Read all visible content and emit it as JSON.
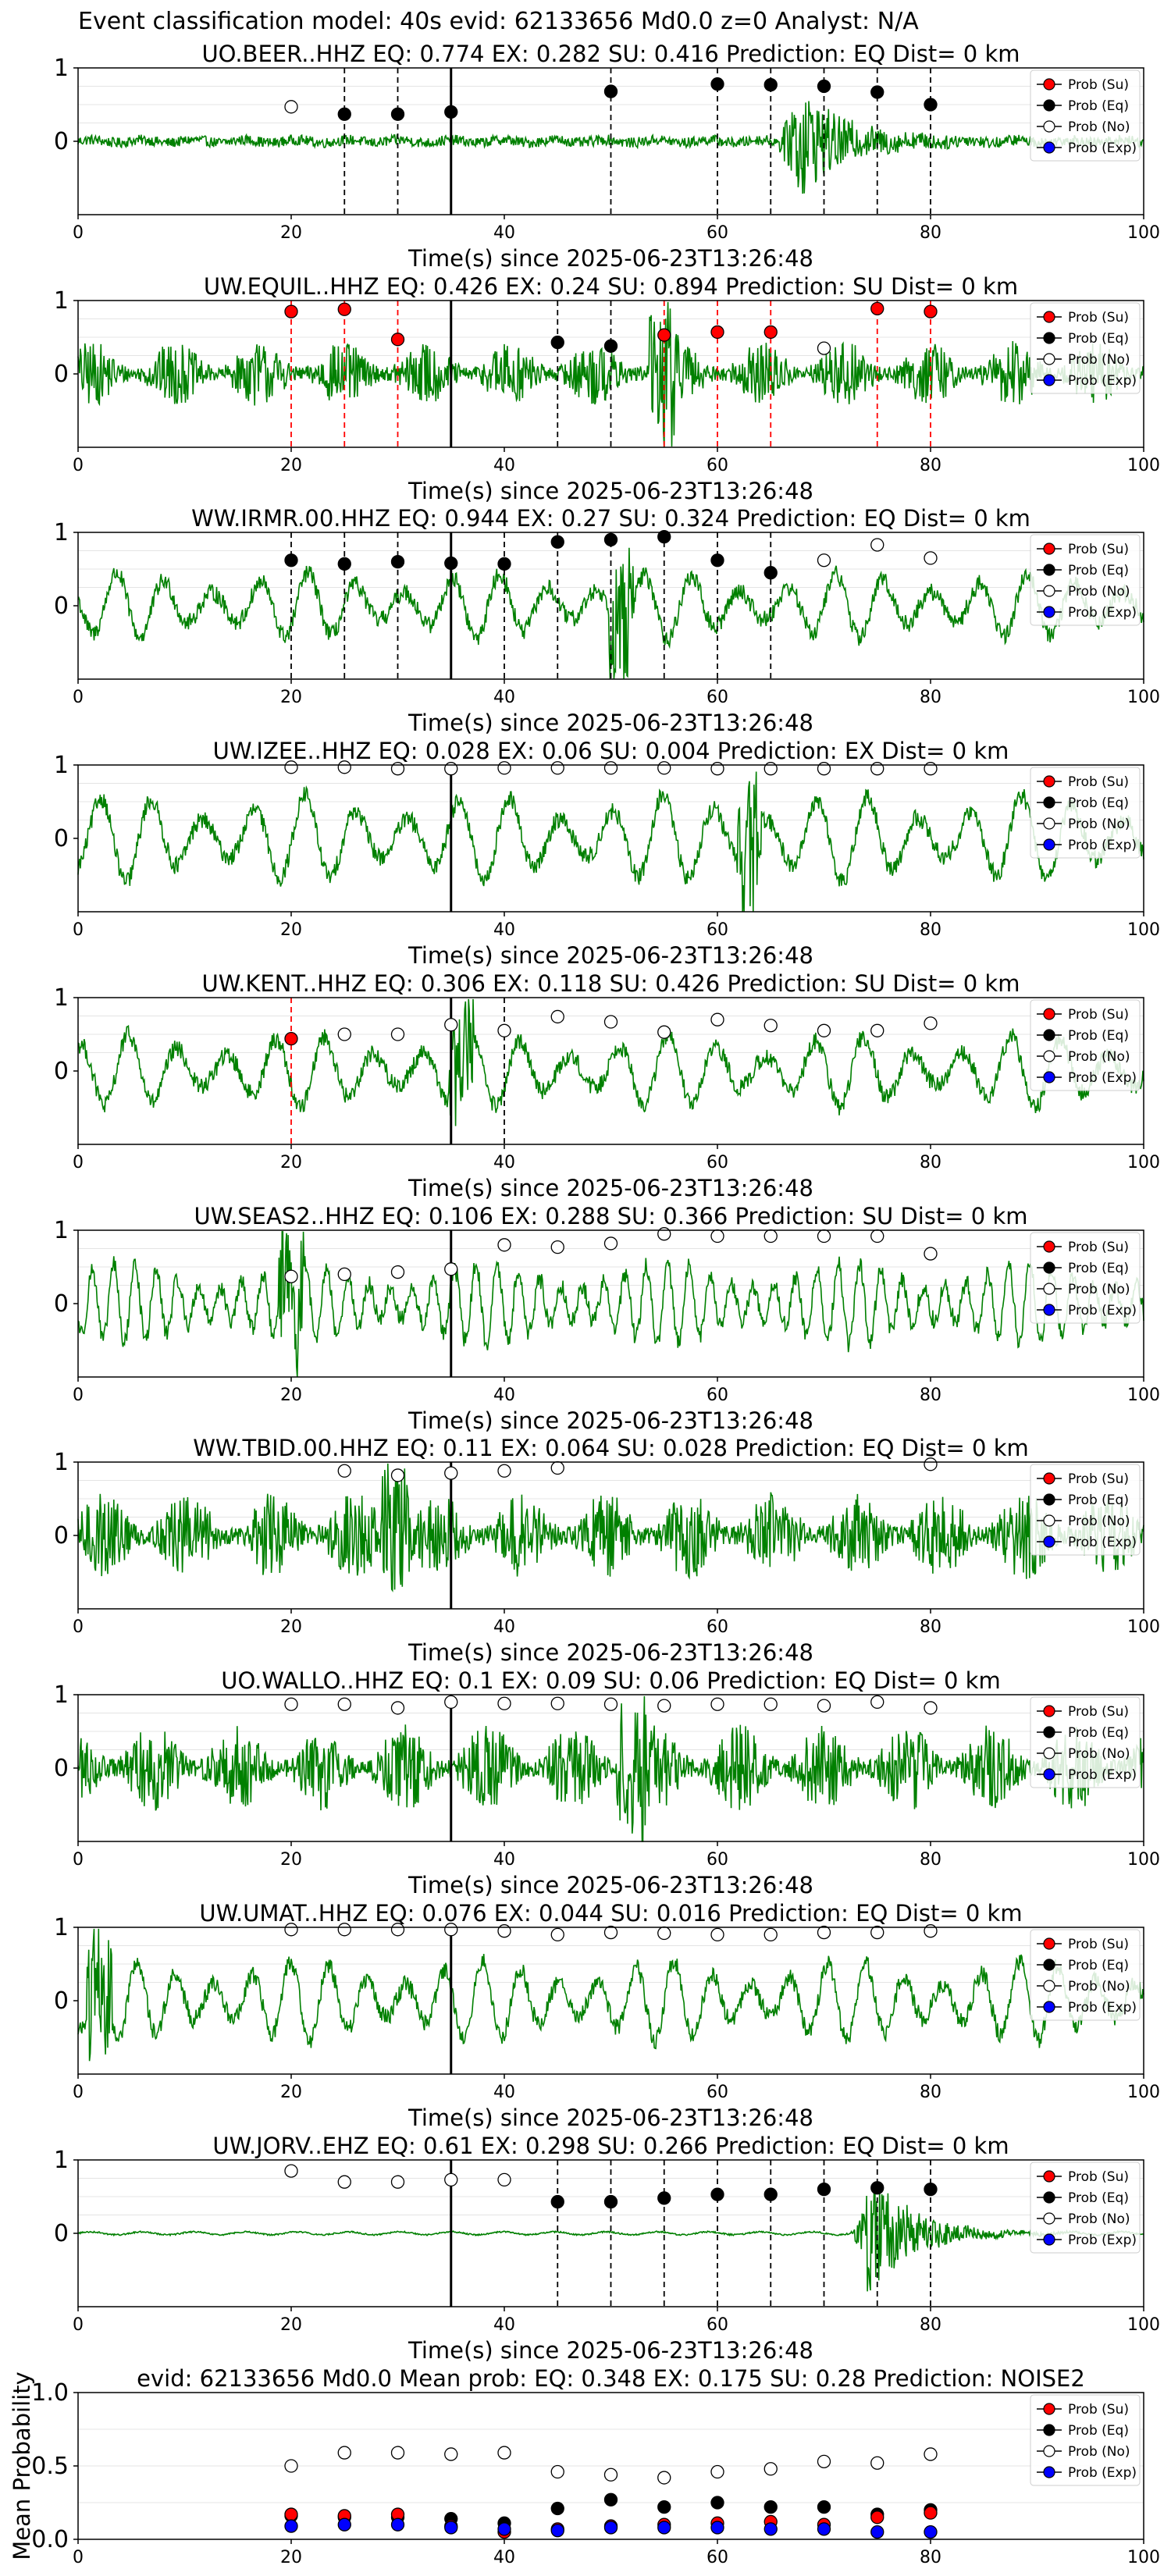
{
  "figure_title": "Event classification model: 40s evid: 62133656 Md0.0 z=0 Analyst: N/A",
  "legend_labels": [
    "Prob (Su)",
    "Prob (Eq)",
    "Prob (No)",
    "Prob (Exp)"
  ],
  "colors": {
    "waveform": "#008000",
    "su": "#ff0000",
    "eq": "#000000",
    "no": "#ffffff",
    "exp": "#0000ff",
    "su_marker_line": "#ff0000",
    "eq_marker_line": "#000000",
    "origin_line": "#000000"
  },
  "chart_data": [
    {
      "type": "line",
      "title": "UO.BEER..HHZ   EQ: 0.774  EX: 0.282  SU: 0.416   Prediction: EQ    Dist= 0 km",
      "xlabel": "Time(s) since 2025-06-23T13:26:48",
      "ylabel": "",
      "xlim": [
        0,
        100
      ],
      "ylim": [
        -1,
        1
      ],
      "xticks": [
        0,
        20,
        40,
        60,
        80,
        100
      ],
      "yticks": [
        0,
        1
      ],
      "origin_time": 35,
      "marker_lines": {
        "color": "eq",
        "times": [
          25,
          30,
          50,
          60,
          65,
          70,
          75,
          80
        ]
      },
      "waveform": {
        "style": "event",
        "event_time": 67,
        "bg_amp": 0.07,
        "spike_amp": 0.9
      },
      "series": [
        {
          "name": "Prob (Eq)",
          "marker": "eq",
          "x": [
            25,
            30,
            35,
            50,
            60,
            65,
            70,
            75,
            80
          ],
          "y": [
            0.37,
            0.37,
            0.4,
            0.68,
            0.78,
            0.77,
            0.75,
            0.67,
            0.5
          ]
        },
        {
          "name": "Prob (No)",
          "marker": "no",
          "x": [
            20
          ],
          "y": [
            0.47
          ]
        }
      ]
    },
    {
      "type": "line",
      "title": "UW.EQUIL..HHZ   EQ: 0.426  EX: 0.24  SU: 0.894   Prediction: SU    Dist= 0 km",
      "xlabel": "Time(s) since 2025-06-23T13:26:48",
      "ylabel": "",
      "xlim": [
        0,
        100
      ],
      "ylim": [
        -1,
        1
      ],
      "xticks": [
        0,
        20,
        40,
        60,
        80,
        100
      ],
      "yticks": [
        0,
        1
      ],
      "origin_time": 35,
      "marker_lines": {
        "color": "su",
        "times": [
          20,
          25,
          30,
          55,
          60,
          65,
          75,
          80
        ]
      },
      "marker_lines_2": {
        "color": "eq",
        "times": [
          45,
          50
        ]
      },
      "waveform": {
        "style": "noisy",
        "bg_amp": 0.45,
        "spike_time": 55,
        "spike_amp": 0.95
      },
      "series": [
        {
          "name": "Prob (Su)",
          "marker": "su",
          "x": [
            20,
            25,
            30,
            55,
            60,
            65,
            75,
            80
          ],
          "y": [
            0.85,
            0.88,
            0.47,
            0.53,
            0.57,
            0.57,
            0.89,
            0.85
          ]
        },
        {
          "name": "Prob (Eq)",
          "marker": "eq",
          "x": [
            45,
            50
          ],
          "y": [
            0.43,
            0.38
          ]
        },
        {
          "name": "Prob (No)",
          "marker": "no",
          "x": [
            70
          ],
          "y": [
            0.35
          ]
        }
      ]
    },
    {
      "type": "line",
      "title": "WW.IRMR.00.HHZ   EQ: 0.944  EX: 0.27  SU: 0.324   Prediction: EQ    Dist= 0 km",
      "xlabel": "Time(s) since 2025-06-23T13:26:48",
      "ylabel": "",
      "xlim": [
        0,
        100
      ],
      "ylim": [
        -1,
        1
      ],
      "xticks": [
        0,
        20,
        40,
        60,
        80,
        100
      ],
      "yticks": [
        0,
        1
      ],
      "origin_time": 35,
      "marker_lines": {
        "color": "eq",
        "times": [
          20,
          25,
          30,
          40,
          45,
          50,
          55,
          60,
          65
        ]
      },
      "waveform": {
        "style": "wavy",
        "bg_amp": 0.45,
        "period": 4.5,
        "spike_time": 51,
        "spike_amp": 0.95
      },
      "series": [
        {
          "name": "Prob (Eq)",
          "marker": "eq",
          "x": [
            20,
            25,
            30,
            35,
            40,
            45,
            50,
            55,
            60,
            65
          ],
          "y": [
            0.62,
            0.57,
            0.6,
            0.58,
            0.57,
            0.87,
            0.9,
            0.94,
            0.62,
            0.45
          ]
        },
        {
          "name": "Prob (No)",
          "marker": "no",
          "x": [
            70,
            75,
            80
          ],
          "y": [
            0.62,
            0.83,
            0.65
          ]
        }
      ]
    },
    {
      "type": "line",
      "title": "UW.IZEE..HHZ   EQ: 0.028  EX: 0.06  SU: 0.004   Prediction: EX    Dist= 0 km",
      "xlabel": "Time(s) since 2025-06-23T13:26:48",
      "ylabel": "",
      "xlim": [
        0,
        100
      ],
      "ylim": [
        -1,
        1
      ],
      "xticks": [
        0,
        20,
        40,
        60,
        80,
        100
      ],
      "yticks": [
        0,
        1
      ],
      "origin_time": 35,
      "waveform": {
        "style": "wavy",
        "bg_amp": 0.6,
        "period": 4.8,
        "spike_time": 63,
        "spike_amp": 0.95
      },
      "series": [
        {
          "name": "Prob (No)",
          "marker": "no",
          "x": [
            20,
            25,
            30,
            35,
            40,
            45,
            50,
            55,
            60,
            65,
            70,
            75,
            80
          ],
          "y": [
            0.97,
            0.97,
            0.95,
            0.95,
            0.96,
            0.96,
            0.96,
            0.96,
            0.95,
            0.95,
            0.95,
            0.95,
            0.95
          ]
        }
      ]
    },
    {
      "type": "line",
      "title": "UW.KENT..HHZ   EQ: 0.306  EX: 0.118  SU: 0.426   Prediction: SU    Dist= 0 km",
      "xlabel": "Time(s) since 2025-06-23T13:26:48",
      "ylabel": "",
      "xlim": [
        0,
        100
      ],
      "ylim": [
        -1,
        1
      ],
      "xticks": [
        0,
        20,
        40,
        60,
        80,
        100
      ],
      "yticks": [
        0,
        1
      ],
      "origin_time": 35,
      "marker_lines": {
        "color": "su",
        "times": [
          20
        ]
      },
      "marker_lines_2": {
        "color": "eq",
        "times": [
          40
        ]
      },
      "waveform": {
        "style": "wavy",
        "bg_amp": 0.5,
        "period": 4.6,
        "spike_time": 36,
        "spike_amp": 0.95
      },
      "series": [
        {
          "name": "Prob (Su)",
          "marker": "su",
          "x": [
            20
          ],
          "y": [
            0.44
          ]
        },
        {
          "name": "Prob (No)",
          "marker": "no",
          "x": [
            25,
            30,
            35,
            40,
            45,
            50,
            55,
            60,
            65,
            70,
            75,
            80
          ],
          "y": [
            0.5,
            0.5,
            0.63,
            0.55,
            0.74,
            0.67,
            0.53,
            0.7,
            0.62,
            0.55,
            0.55,
            0.65
          ]
        }
      ]
    },
    {
      "type": "line",
      "title": "UW.SEAS2..HHZ   EQ: 0.106  EX: 0.288  SU: 0.366   Prediction: SU    Dist= 0 km",
      "xlabel": "Time(s) since 2025-06-23T13:26:48",
      "ylabel": "",
      "xlim": [
        0,
        100
      ],
      "ylim": [
        -1,
        1
      ],
      "xticks": [
        0,
        20,
        40,
        60,
        80,
        100
      ],
      "yticks": [
        0,
        1
      ],
      "origin_time": 35,
      "waveform": {
        "style": "wavy",
        "bg_amp": 0.55,
        "period": 2.0,
        "spike_time": 20,
        "spike_amp": 0.9
      },
      "series": [
        {
          "name": "Prob (No)",
          "marker": "no",
          "x": [
            20,
            25,
            30,
            35,
            40,
            45,
            50,
            55,
            60,
            65,
            70,
            75,
            80
          ],
          "y": [
            0.37,
            0.4,
            0.43,
            0.47,
            0.8,
            0.77,
            0.82,
            0.95,
            0.92,
            0.92,
            0.92,
            0.92,
            0.68
          ]
        }
      ]
    },
    {
      "type": "line",
      "title": "WW.TBID.00.HHZ   EQ: 0.11  EX: 0.064  SU: 0.028   Prediction: EQ    Dist= 0 km",
      "xlabel": "Time(s) since 2025-06-23T13:26:48",
      "ylabel": "",
      "xlim": [
        0,
        100
      ],
      "ylim": [
        -1,
        1
      ],
      "xticks": [
        0,
        20,
        40,
        60,
        80,
        100
      ],
      "yticks": [
        0,
        1
      ],
      "origin_time": 35,
      "waveform": {
        "style": "noisy",
        "bg_amp": 0.6,
        "spike_time": 30,
        "spike_amp": 0.9
      },
      "series": [
        {
          "name": "Prob (No)",
          "marker": "no",
          "x": [
            25,
            30,
            35,
            40,
            45,
            80
          ],
          "y": [
            0.88,
            0.82,
            0.85,
            0.88,
            0.92,
            0.97
          ]
        }
      ]
    },
    {
      "type": "line",
      "title": "UO.WALLO..HHZ   EQ: 0.1  EX: 0.09  SU: 0.06   Prediction: EQ    Dist= 0 km",
      "xlabel": "Time(s) since 2025-06-23T13:26:48",
      "ylabel": "",
      "xlim": [
        0,
        100
      ],
      "ylim": [
        -1,
        1
      ],
      "xticks": [
        0,
        20,
        40,
        60,
        80,
        100
      ],
      "yticks": [
        0,
        1
      ],
      "origin_time": 35,
      "waveform": {
        "style": "noisy",
        "bg_amp": 0.6,
        "spike_time": 52,
        "spike_amp": 0.9
      },
      "series": [
        {
          "name": "Prob (No)",
          "marker": "no",
          "x": [
            20,
            25,
            30,
            35,
            40,
            45,
            50,
            55,
            60,
            65,
            70,
            75,
            80
          ],
          "y": [
            0.87,
            0.87,
            0.82,
            0.9,
            0.88,
            0.88,
            0.87,
            0.85,
            0.87,
            0.87,
            0.85,
            0.9,
            0.82
          ]
        }
      ]
    },
    {
      "type": "line",
      "title": "UW.UMAT..HHZ   EQ: 0.076  EX: 0.044  SU: 0.016   Prediction: EQ    Dist= 0 km",
      "xlabel": "Time(s) since 2025-06-23T13:26:48",
      "ylabel": "",
      "xlim": [
        0,
        100
      ],
      "ylim": [
        -1,
        1
      ],
      "xticks": [
        0,
        20,
        40,
        60,
        80,
        100
      ],
      "yticks": [
        0,
        1
      ],
      "origin_time": 35,
      "waveform": {
        "style": "wavy",
        "bg_amp": 0.55,
        "period": 3.6,
        "spike_time": 2,
        "spike_amp": 0.95
      },
      "series": [
        {
          "name": "Prob (No)",
          "marker": "no",
          "x": [
            20,
            25,
            30,
            35,
            40,
            45,
            50,
            55,
            60,
            65,
            70,
            75,
            80
          ],
          "y": [
            0.97,
            0.97,
            0.97,
            0.97,
            0.95,
            0.9,
            0.93,
            0.92,
            0.9,
            0.9,
            0.93,
            0.93,
            0.95
          ]
        }
      ]
    },
    {
      "type": "line",
      "title": "UW.JORV..EHZ   EQ: 0.61  EX: 0.298  SU: 0.266   Prediction: EQ    Dist= 0 km",
      "xlabel": "Time(s) since 2025-06-23T13:26:48",
      "ylabel": "",
      "xlim": [
        0,
        100
      ],
      "ylim": [
        -1,
        1
      ],
      "xticks": [
        0,
        20,
        40,
        60,
        80,
        100
      ],
      "yticks": [
        0,
        1
      ],
      "origin_time": 35,
      "marker_lines": {
        "color": "eq",
        "times": [
          45,
          50,
          55,
          60,
          65,
          70,
          75,
          80
        ]
      },
      "waveform": {
        "style": "event",
        "event_time": 74,
        "bg_amp": 0.01,
        "spike_amp": 0.95
      },
      "series": [
        {
          "name": "Prob (Eq)",
          "marker": "eq",
          "x": [
            45,
            50,
            55,
            60,
            65,
            70,
            75,
            80
          ],
          "y": [
            0.43,
            0.43,
            0.48,
            0.53,
            0.53,
            0.6,
            0.62,
            0.6
          ]
        },
        {
          "name": "Prob (No)",
          "marker": "no",
          "x": [
            20,
            25,
            30,
            35,
            40
          ],
          "y": [
            0.85,
            0.7,
            0.7,
            0.73,
            0.73
          ]
        }
      ]
    },
    {
      "type": "scatter",
      "title": "evid: 62133656  Md0.0   Mean prob:   EQ: 0.348  EX: 0.175  SU: 0.28   Prediction: NOISE2",
      "xlabel": "",
      "ylabel": "Mean Probability",
      "xlim": [
        0,
        100
      ],
      "ylim": [
        0,
        1
      ],
      "xticks": [
        0,
        20,
        40,
        60,
        80,
        100
      ],
      "yticks": [
        0,
        0.5,
        1.0
      ],
      "ytick_labels": [
        "0.0",
        "0.5",
        "1.0"
      ],
      "series": [
        {
          "name": "Prob (No)",
          "marker": "no",
          "x": [
            20,
            25,
            30,
            35,
            40,
            45,
            50,
            55,
            60,
            65,
            70,
            75,
            80
          ],
          "y": [
            0.5,
            0.59,
            0.59,
            0.58,
            0.59,
            0.46,
            0.44,
            0.42,
            0.46,
            0.48,
            0.53,
            0.52,
            0.58
          ]
        },
        {
          "name": "Prob (Eq)",
          "marker": "eq",
          "x": [
            20,
            25,
            30,
            35,
            40,
            45,
            50,
            55,
            60,
            65,
            70,
            75,
            80
          ],
          "y": [
            0.16,
            0.15,
            0.15,
            0.14,
            0.11,
            0.21,
            0.27,
            0.22,
            0.25,
            0.22,
            0.22,
            0.17,
            0.2
          ]
        },
        {
          "name": "Prob (Su)",
          "marker": "su",
          "x": [
            20,
            25,
            30,
            35,
            40,
            45,
            50,
            55,
            60,
            65,
            70,
            75,
            80
          ],
          "y": [
            0.17,
            0.16,
            0.17,
            0.09,
            0.05,
            0.07,
            0.09,
            0.1,
            0.11,
            0.12,
            0.1,
            0.15,
            0.18
          ]
        },
        {
          "name": "Prob (Exp)",
          "marker": "exp",
          "x": [
            20,
            25,
            30,
            35,
            40,
            45,
            50,
            55,
            60,
            65,
            70,
            75,
            80
          ],
          "y": [
            0.09,
            0.1,
            0.1,
            0.08,
            0.07,
            0.06,
            0.08,
            0.08,
            0.08,
            0.07,
            0.07,
            0.05,
            0.05
          ]
        }
      ]
    }
  ]
}
